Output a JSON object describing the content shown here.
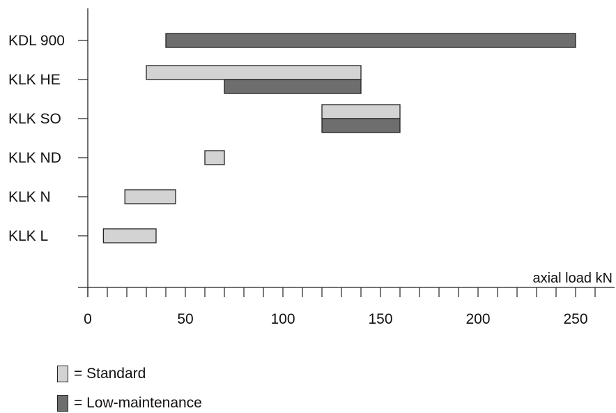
{
  "chart_data": {
    "type": "bar",
    "orientation": "horizontal",
    "categories": [
      "KDL 900",
      "KLK HE",
      "KLK SO",
      "KLK ND",
      "KLK N",
      "KLK L"
    ],
    "xlabel": "axial load kN",
    "xlim": [
      0,
      270
    ],
    "xticks": [
      0,
      50,
      100,
      150,
      200,
      250
    ],
    "grid": false,
    "legend_position": "bottom-left",
    "series": [
      {
        "name": "Standard",
        "color": "#d3d3d3",
        "ranges": [
          {
            "category": "KLK HE",
            "start": 30,
            "end": 140
          },
          {
            "category": "KLK SO",
            "start": 120,
            "end": 160
          },
          {
            "category": "KLK ND",
            "start": 60,
            "end": 70
          },
          {
            "category": "KLK N",
            "start": 19,
            "end": 45
          },
          {
            "category": "KLK L",
            "start": 8,
            "end": 35
          }
        ]
      },
      {
        "name": "Low-maintenance",
        "color": "#6e6e6e",
        "ranges": [
          {
            "category": "KDL 900",
            "start": 40,
            "end": 250
          },
          {
            "category": "KLK HE",
            "start": 70,
            "end": 140
          },
          {
            "category": "KLK SO",
            "start": 120,
            "end": 160
          }
        ]
      }
    ]
  },
  "legend": {
    "standard_label": "= Standard",
    "low_maintenance_label": "= Low-maintenance"
  }
}
